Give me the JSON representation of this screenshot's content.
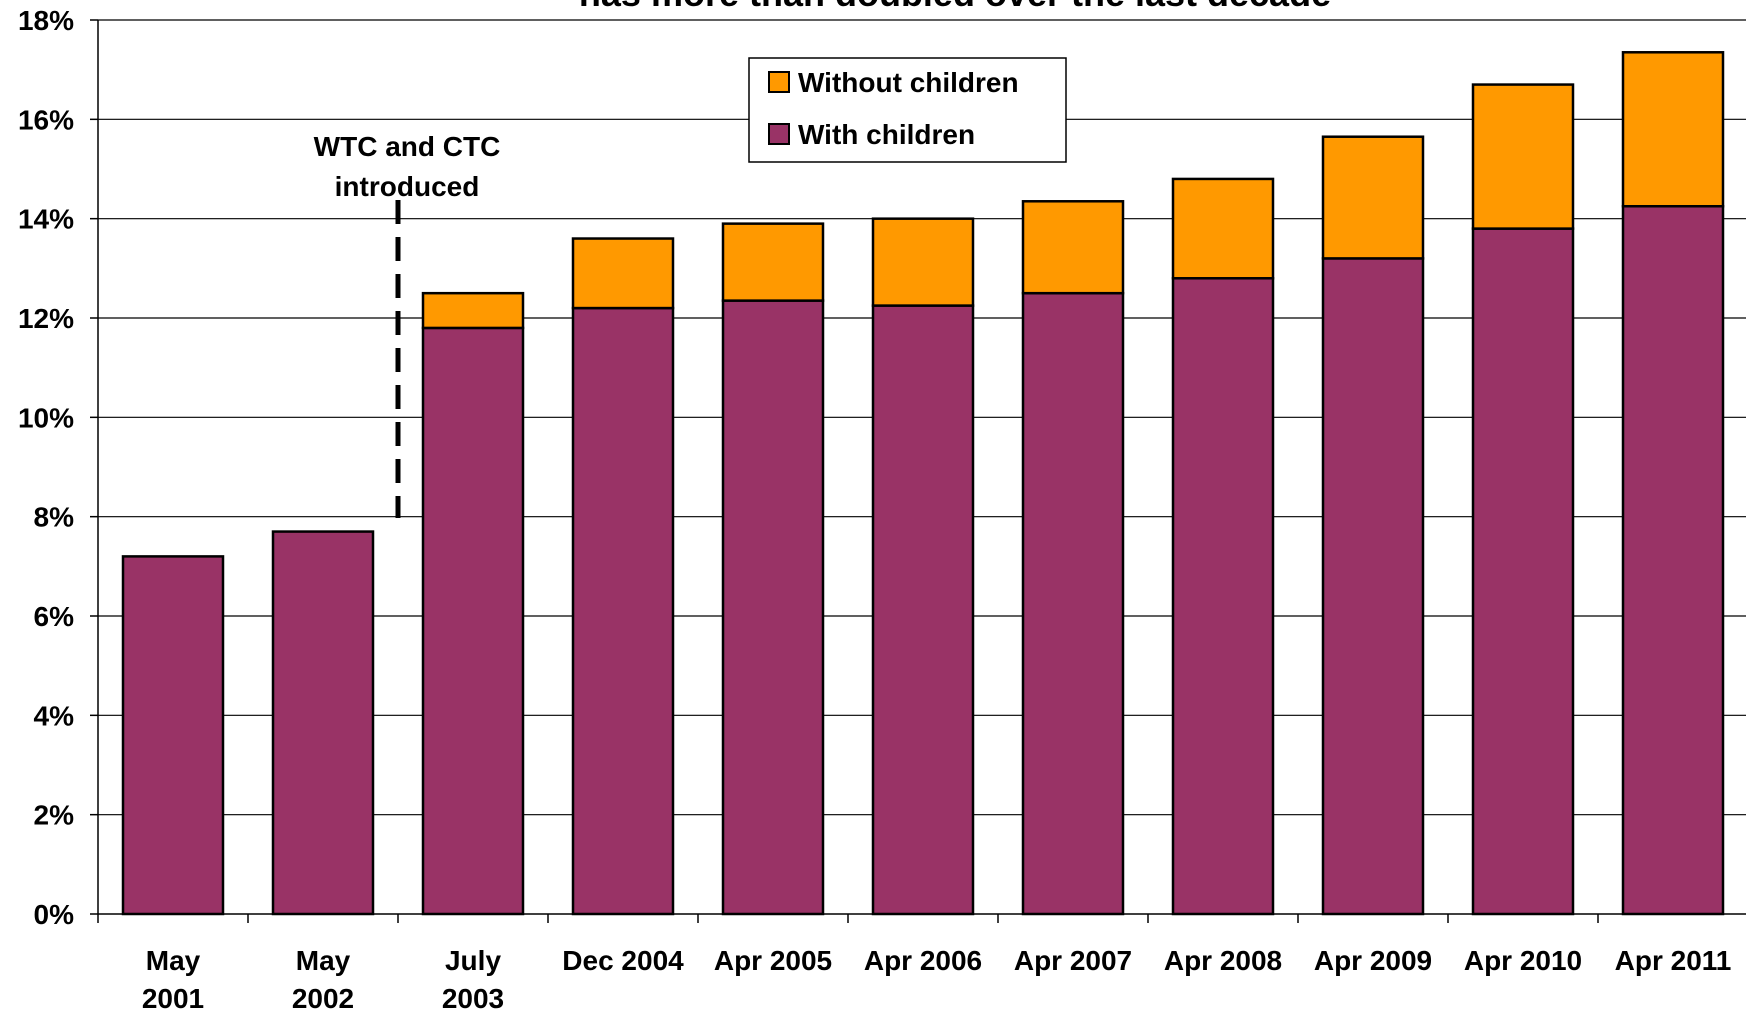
{
  "chart_data": {
    "type": "bar",
    "stacked": true,
    "title": "has more than doubled over the last decade",
    "xlabel": "",
    "ylabel": "",
    "ylim": [
      0,
      18
    ],
    "y_tick_labels": [
      "0%",
      "2%",
      "4%",
      "6%",
      "8%",
      "10%",
      "12%",
      "14%",
      "16%",
      "18%"
    ],
    "categories": [
      [
        "May",
        "2001"
      ],
      [
        "May",
        "2002"
      ],
      [
        "July",
        "2003"
      ],
      [
        "Dec 2004"
      ],
      [
        "Apr 2005"
      ],
      [
        "Apr 2006"
      ],
      [
        "Apr 2007"
      ],
      [
        "Apr 2008"
      ],
      [
        "Apr 2009"
      ],
      [
        "Apr 2010"
      ],
      [
        "Apr 2011"
      ]
    ],
    "series": [
      {
        "name": "With children",
        "color": "#993366",
        "values": [
          7.2,
          7.7,
          11.8,
          12.2,
          12.35,
          12.25,
          12.5,
          12.8,
          13.2,
          13.8,
          14.25
        ]
      },
      {
        "name": "Without children",
        "color": "#FF9900",
        "values": [
          0,
          0,
          0.7,
          1.4,
          1.55,
          1.75,
          1.85,
          2.0,
          2.45,
          2.9,
          3.1
        ]
      }
    ],
    "legend": {
      "position": "top-center",
      "entries": [
        "Without children",
        "With children"
      ]
    },
    "annotation": {
      "text": [
        "WTC and CTC",
        "introduced"
      ],
      "style": "dashed vertical line between May 2002 and July 2003"
    },
    "grid": true
  }
}
